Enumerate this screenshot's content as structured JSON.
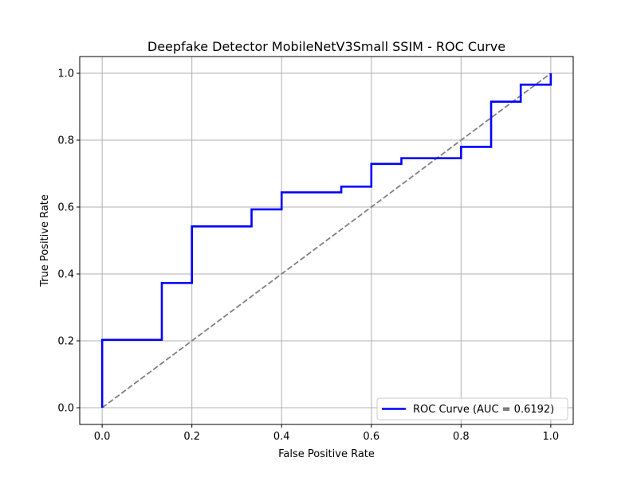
{
  "chart_data": {
    "type": "line",
    "title": "Deepfake Detector MobileNetV3Small SSIM - ROC Curve",
    "xlabel": "False Positive Rate",
    "ylabel": "True Positive Rate",
    "xlim": [
      -0.05,
      1.05
    ],
    "ylim": [
      -0.05,
      1.05
    ],
    "xticks": [
      "0.0",
      "0.2",
      "0.4",
      "0.6",
      "0.8",
      "1.0"
    ],
    "yticks": [
      "0.0",
      "0.2",
      "0.4",
      "0.6",
      "0.8",
      "1.0"
    ],
    "grid": true,
    "legend_placement": "lower-right",
    "series": [
      {
        "name": "ROC Curve (AUC = 0.6192)",
        "color": "#0000ff",
        "style": "solid",
        "x": [
          0.0,
          0.0,
          0.133,
          0.133,
          0.2,
          0.2,
          0.333,
          0.333,
          0.4,
          0.4,
          0.533,
          0.533,
          0.6,
          0.6,
          0.667,
          0.667,
          0.8,
          0.8,
          0.867,
          0.867,
          0.933,
          0.933,
          1.0,
          1.0
        ],
        "y": [
          0.0,
          0.203,
          0.203,
          0.373,
          0.373,
          0.542,
          0.542,
          0.593,
          0.593,
          0.644,
          0.644,
          0.661,
          0.661,
          0.729,
          0.729,
          0.746,
          0.746,
          0.78,
          0.78,
          0.915,
          0.915,
          0.966,
          0.966,
          1.0
        ]
      },
      {
        "color": "#808080",
        "style": "dashed",
        "x": [
          0.0,
          1.0
        ],
        "y": [
          0.0,
          1.0
        ]
      }
    ]
  }
}
